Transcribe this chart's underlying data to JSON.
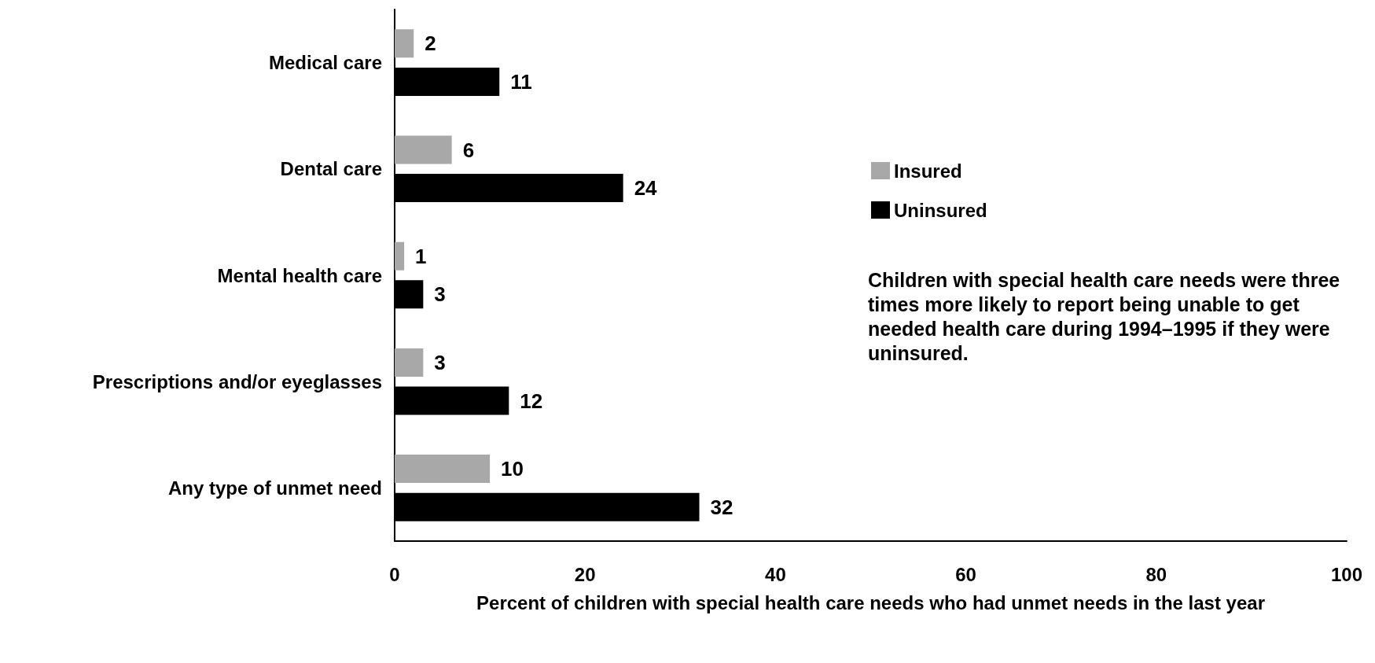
{
  "chart_data": {
    "type": "bar",
    "orientation": "horizontal",
    "categories": [
      "Medical care",
      "Dental care",
      "Mental health care",
      "Prescriptions and/or eyeglasses",
      "Any type of unmet need"
    ],
    "series": [
      {
        "name": "Insured",
        "color": "#a8a8a8",
        "values": [
          2,
          6,
          1,
          3,
          10
        ]
      },
      {
        "name": "Uninsured",
        "color": "#000000",
        "values": [
          11,
          24,
          3,
          12,
          32
        ]
      }
    ],
    "xlim": [
      0,
      100
    ],
    "xticks": [
      0,
      20,
      40,
      60,
      80,
      100
    ],
    "xlabel": "Percent of children with special health care needs who had unmet needs in the last year",
    "data_labels": true,
    "legend": "right",
    "grid": false,
    "annotations": [
      "Children with special health care needs were three times more likely to report being unable to get needed health care during 1994–1995 if they were uninsured."
    ]
  }
}
